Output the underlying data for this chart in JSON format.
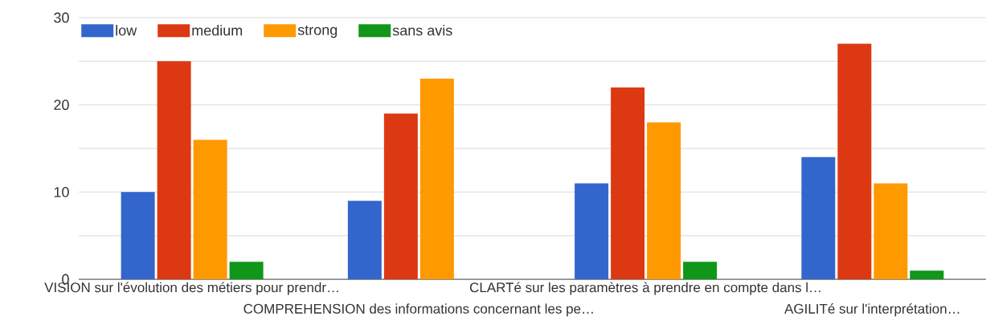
{
  "chart_data": {
    "type": "bar",
    "categories": [
      "VISION sur l'évolution des métiers pour prendr…",
      "COMPREHENSION des informations concernant les pe…",
      "CLARTé sur les paramètres à prendre en compte dans l…",
      "AGILITé sur l'interprétation…"
    ],
    "series": [
      {
        "name": "low",
        "color": "#3366cc",
        "values": [
          10,
          9,
          11,
          14
        ]
      },
      {
        "name": "medium",
        "color": "#dc3912",
        "values": [
          25,
          19,
          22,
          27
        ]
      },
      {
        "name": "strong",
        "color": "#ff9900",
        "values": [
          16,
          23,
          18,
          11
        ]
      },
      {
        "name": "sans avis",
        "color": "#109618",
        "values": [
          2,
          null,
          2,
          1
        ]
      }
    ],
    "ylim": [
      0,
      30
    ],
    "yticks": [
      0,
      {
        "value": 5,
        "label": null
      },
      10,
      {
        "value": 15,
        "label": null
      },
      20,
      {
        "value": 25,
        "label": null
      },
      30
    ],
    "grid": "y",
    "legend": "top left"
  }
}
